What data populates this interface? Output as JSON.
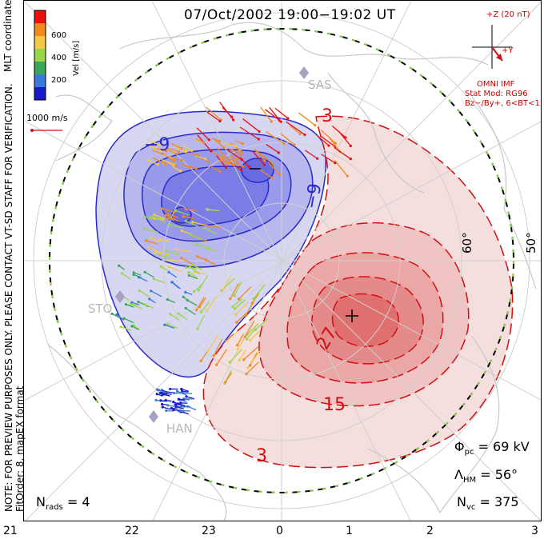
{
  "title": "07/Oct/2002 19:00−19:02 UT",
  "side_notes": {
    "coords": "MLT coordinates",
    "preview": "NOTE: FOR PREVIEW PURPOSES ONLY. PLEASE CONTACT VT-SD STAFF FOR VERIFICATION.",
    "fitorder": "FitOrder: 8, mapEX format"
  },
  "velocity_scale": {
    "label": "Vel [m/s]",
    "ticks": [
      "600",
      "400",
      "200"
    ],
    "colors": [
      "#e81010",
      "#f08a1e",
      "#f6c84a",
      "#9ad64a",
      "#3aa65a",
      "#3a7ad8",
      "#1a1ac8"
    ],
    "reference_label": "1000 m/s"
  },
  "imf": {
    "z_label": "+Z (20 nT)",
    "y_label": "+Y",
    "source": "OMNI IMF",
    "model": "Stat Mod: RG96",
    "condition": "Bz−/By+, 6<BT<12"
  },
  "contour_labels": {
    "neg_top": "−9",
    "neg_mid": "−9",
    "pos_top": "3",
    "pos_27": "27",
    "pos_15": "15",
    "pos_bottom": "3"
  },
  "stations": [
    "SAS",
    "STO",
    "HAN"
  ],
  "latitudes": [
    "60°",
    "50°"
  ],
  "stats": {
    "phi_symbol": "Φ",
    "phi_sub": "pc",
    "phi_value": "= 69 kV",
    "lambda_symbol": "Λ",
    "lambda_sub": "HM",
    "lambda_value": "= 56°",
    "nvc_symbol": "N",
    "nvc_sub": "vc",
    "nvc_value": "= 375",
    "nrads_symbol": "N",
    "nrads_sub": "rads",
    "nrads_value": "= 4"
  },
  "mlt_ticks": [
    "21",
    "22",
    "23",
    "0",
    "1",
    "2",
    "3"
  ],
  "colors": {
    "negative": "#2a2acc",
    "positive": "#d01010",
    "boundary": "#8cd14a",
    "coast": "#c8c8c8"
  }
}
